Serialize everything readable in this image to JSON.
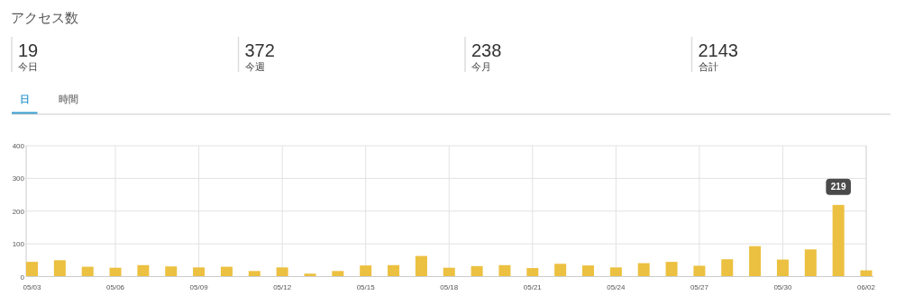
{
  "chart_data": [
    {
      "type": "other",
      "title": "アクセス数",
      "annotations": [
        "19",
        "今日",
        "372",
        "今週",
        "238",
        "今月",
        "2143",
        "合計"
      ]
    },
    {
      "type": "bar",
      "annotations": [
        "日",
        "時間"
      ],
      "categories": [
        "05/03",
        null,
        null,
        "05/06",
        null,
        null,
        "05/09",
        null,
        null,
        "05/12",
        null,
        null,
        "05/15",
        null,
        null,
        "05/18",
        null,
        null,
        "05/21",
        null,
        null,
        "05/24",
        null,
        null,
        "05/27",
        null,
        null,
        "05/30",
        null,
        null,
        "06/02"
      ],
      "values": [
        45,
        50,
        30,
        27,
        35,
        31,
        28,
        30,
        17,
        28,
        9,
        17,
        34,
        35,
        63,
        27,
        32,
        35,
        26,
        39,
        34,
        28,
        41,
        45,
        33,
        53,
        93,
        52,
        83,
        219,
        19
      ],
      "value_labels": [
        null,
        null,
        null,
        null,
        null,
        null,
        null,
        null,
        null,
        null,
        null,
        null,
        null,
        null,
        null,
        null,
        null,
        null,
        null,
        null,
        null,
        null,
        null,
        null,
        null,
        null,
        null,
        null,
        null,
        "219",
        null
      ],
      "color": "#ecc040",
      "ylim": [
        0,
        400
      ],
      "yticks": [
        0,
        100,
        200,
        300,
        400
      ],
      "grid": true
    }
  ]
}
